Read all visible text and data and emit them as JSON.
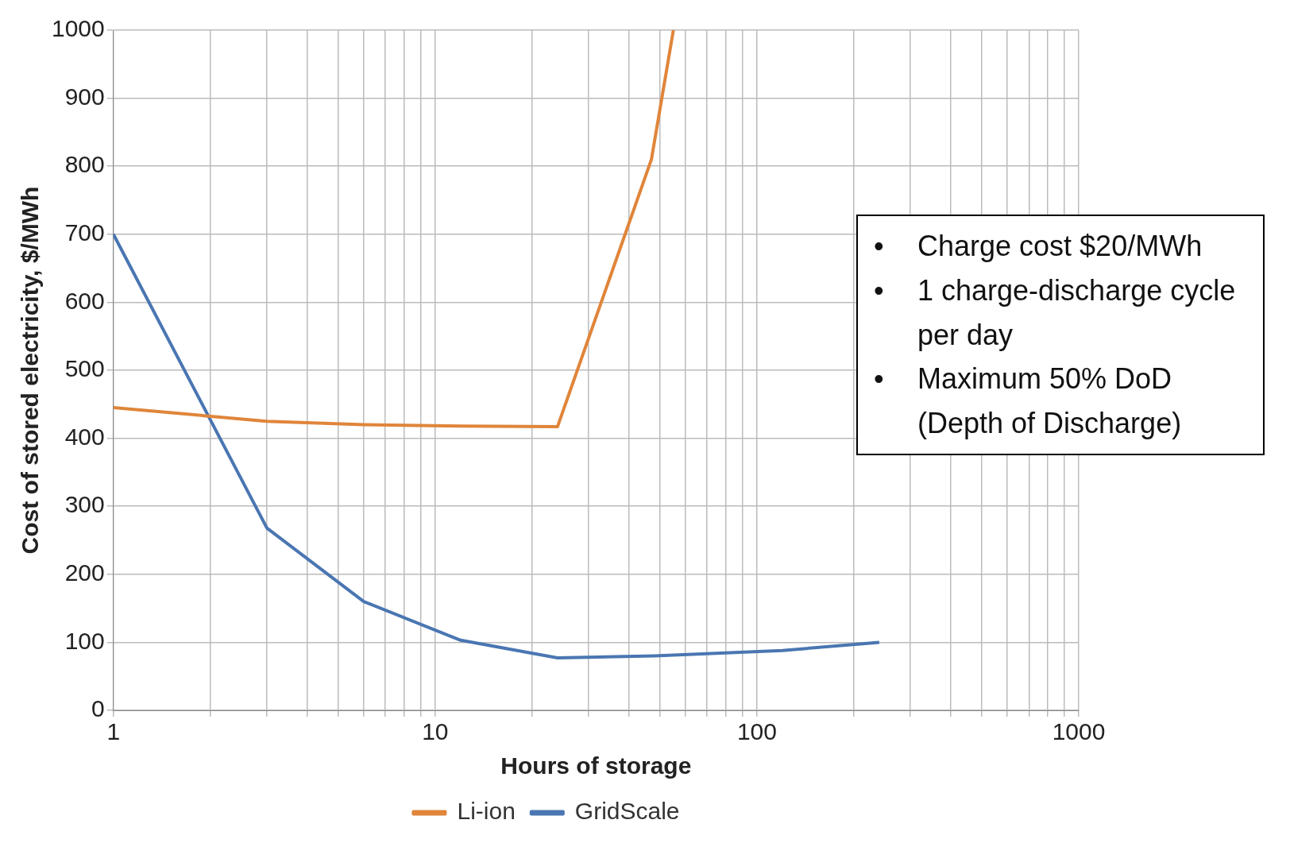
{
  "chart_data": {
    "type": "line",
    "xlabel": "Hours of storage",
    "ylabel": "Cost of stored electricity, $/MWh",
    "annotations": [
      "• Charge cost $20/MWh",
      "• 1 charge-discharge cycle per day",
      "• Maximum  50% DoD (Depth of Discharge)"
    ],
    "log": "x",
    "xlim": [
      1,
      1000
    ],
    "ylim": [
      0,
      1000
    ],
    "xticks": [
      1,
      {
        "value": 2,
        "label": null
      },
      {
        "value": 3,
        "label": null
      },
      {
        "value": 4,
        "label": null
      },
      {
        "value": 5,
        "label": null
      },
      {
        "value": 6,
        "label": null
      },
      {
        "value": 7,
        "label": null
      },
      {
        "value": 8,
        "label": null
      },
      {
        "value": 9,
        "label": null
      },
      10,
      {
        "value": 20,
        "label": null
      },
      {
        "value": 30,
        "label": null
      },
      {
        "value": 40,
        "label": null
      },
      {
        "value": 50,
        "label": null
      },
      {
        "value": 60,
        "label": null
      },
      {
        "value": 70,
        "label": null
      },
      {
        "value": 80,
        "label": null
      },
      {
        "value": 90,
        "label": null
      },
      100,
      {
        "value": 200,
        "label": null
      },
      {
        "value": 300,
        "label": null
      },
      {
        "value": 400,
        "label": null
      },
      {
        "value": 500,
        "label": null
      },
      {
        "value": 600,
        "label": null
      },
      {
        "value": 700,
        "label": null
      },
      {
        "value": 800,
        "label": null
      },
      {
        "value": 900,
        "label": null
      },
      1000
    ],
    "yticks": [
      0,
      100,
      200,
      300,
      400,
      500,
      600,
      700,
      800,
      900,
      1000
    ],
    "grid": true,
    "legend": "bottom",
    "marker": "none",
    "line_style": "solid",
    "series": [
      {
        "name": "Li-ion",
        "color": "#e0853a",
        "x": [
          1,
          3,
          6,
          12,
          24,
          47,
          55
        ],
        "values": [
          445,
          425,
          420,
          418,
          417,
          810,
          1000
        ]
      },
      {
        "name": "GridScale",
        "color": "#4a76b2",
        "x": [
          1,
          3,
          6,
          12,
          24,
          48,
          120,
          240
        ],
        "values": [
          700,
          268,
          160,
          103,
          77,
          80,
          88,
          100
        ]
      }
    ]
  }
}
